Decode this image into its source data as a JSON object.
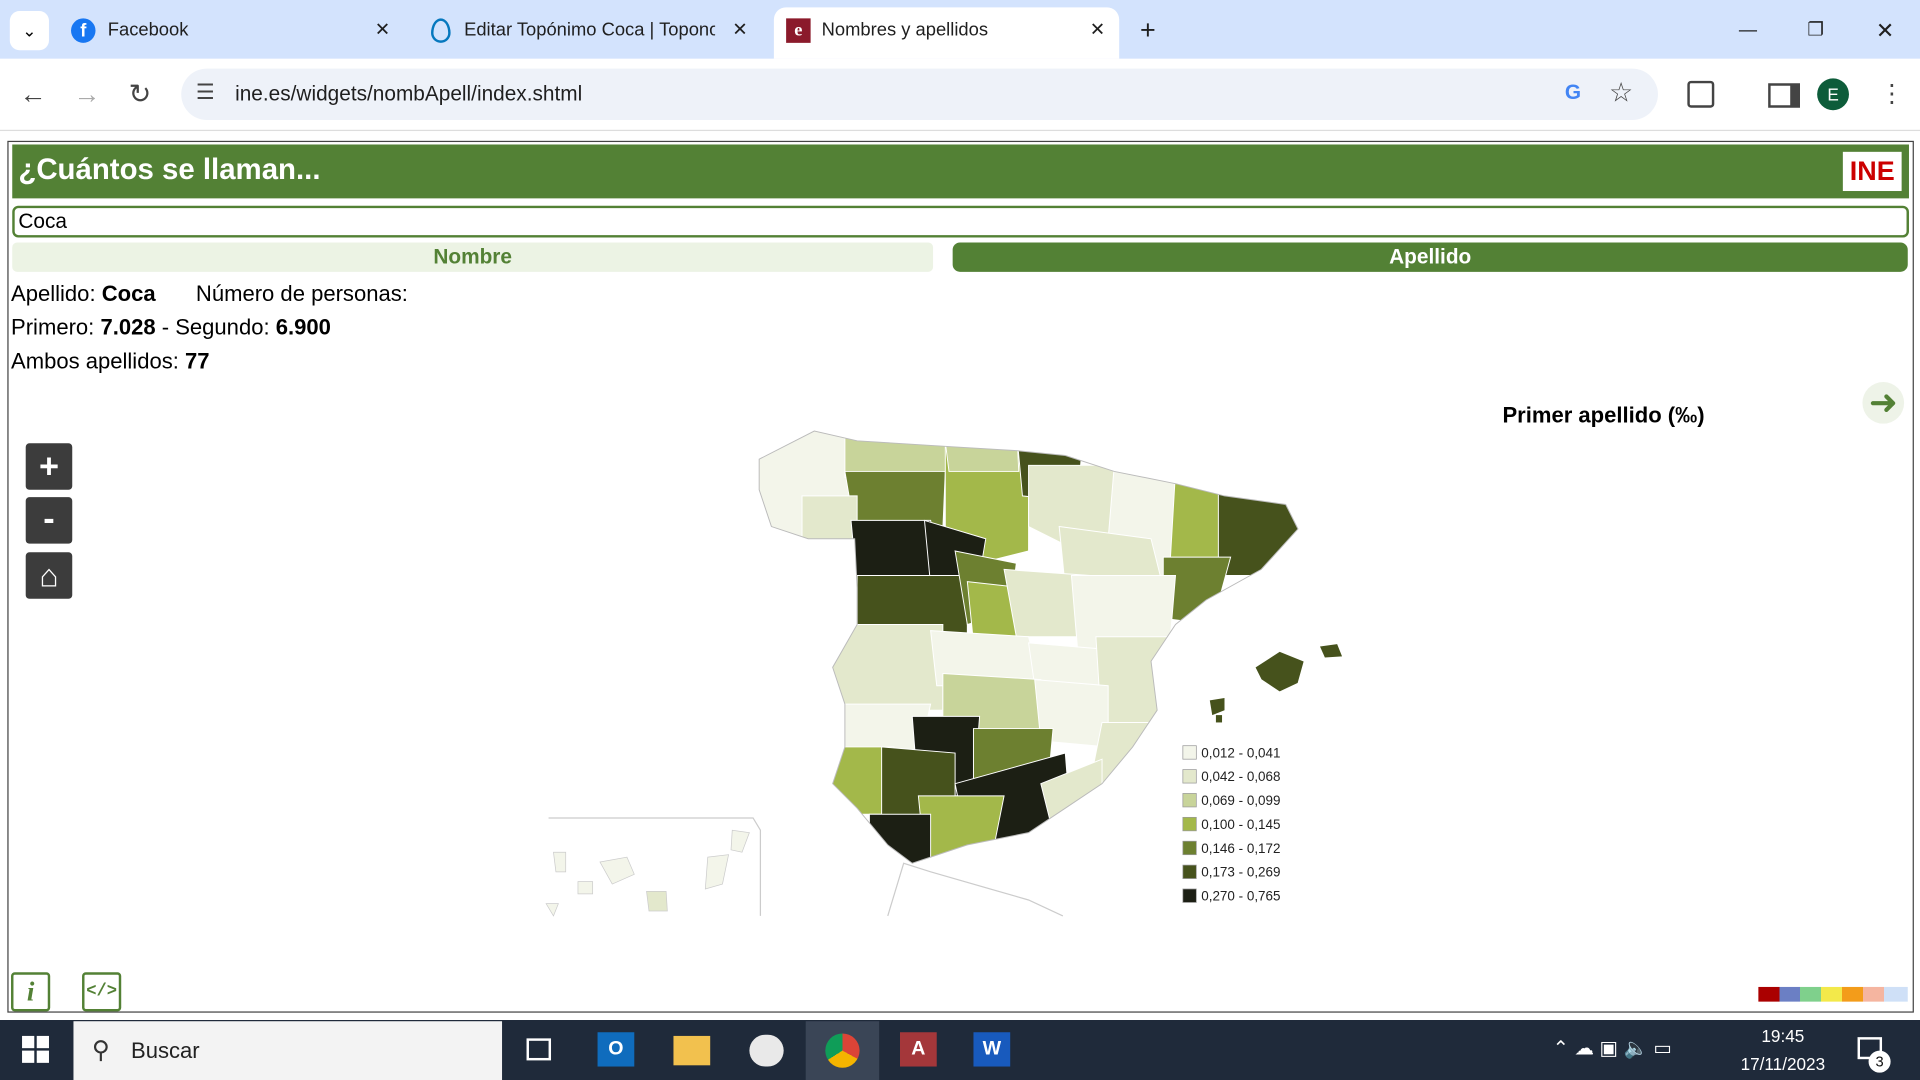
{
  "browser": {
    "tabs": [
      "Facebook",
      "Editar Topónimo Coca | Topono",
      "Nombres y apellidos"
    ],
    "url": "ine.es/widgets/nombApell/index.shtml",
    "profile": "E"
  },
  "widget": {
    "title": "¿Cuántos se llaman...",
    "logo": "INE",
    "search": "Coca",
    "tabs": [
      "Nombre",
      "Apellido"
    ],
    "result": {
      "surname_label": "Apellido:",
      "surname": "Coca",
      "people_label": "Número de personas:",
      "first_label": "Primero:",
      "first": "7.028",
      "second_label": "- Segundo:",
      "second": "6.900",
      "both_label": "Ambos apellidos:",
      "both": "77"
    }
  },
  "map": {
    "title": "Primer apellido (‰)",
    "legend": [
      {
        "label": "0,012 - 0,041",
        "color": "#f3f5ea"
      },
      {
        "label": "0,042 - 0,068",
        "color": "#e3e8cc"
      },
      {
        "label": "0,069 - 0,099",
        "color": "#c8d49a"
      },
      {
        "label": "0,100 - 0,145",
        "color": "#a3b84a"
      },
      {
        "label": "0,146 - 0,172",
        "color": "#6d8030"
      },
      {
        "label": "0,173 - 0,269",
        "color": "#46521c"
      },
      {
        "label": "0,270 - 0,765",
        "color": "#1c1f14"
      }
    ]
  },
  "taskbar": {
    "search": "Buscar",
    "time": "19:45",
    "date": "17/11/2023",
    "notifications": "3"
  }
}
